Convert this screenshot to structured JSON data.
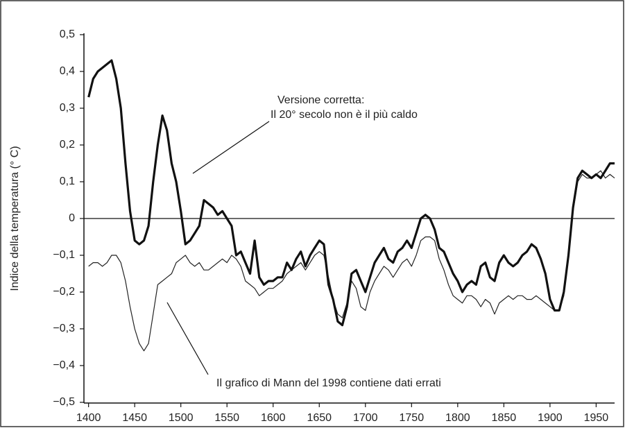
{
  "chart_data": {
    "type": "line",
    "y_label": "Indice della temperatura (° C)",
    "annotations": [
      "Versione corretta:",
      "Il 20° secolo non è il più caldo",
      "Il grafico di Mann del 1998 contiene dati errati"
    ],
    "x": [
      1400,
      1405,
      1410,
      1415,
      1420,
      1425,
      1430,
      1435,
      1440,
      1445,
      1450,
      1455,
      1460,
      1465,
      1470,
      1475,
      1480,
      1485,
      1490,
      1495,
      1500,
      1505,
      1510,
      1515,
      1520,
      1525,
      1530,
      1535,
      1540,
      1545,
      1550,
      1555,
      1560,
      1565,
      1570,
      1575,
      1580,
      1585,
      1590,
      1595,
      1600,
      1605,
      1610,
      1615,
      1620,
      1625,
      1630,
      1635,
      1640,
      1645,
      1650,
      1655,
      1660,
      1665,
      1670,
      1675,
      1680,
      1685,
      1690,
      1695,
      1700,
      1705,
      1710,
      1715,
      1720,
      1725,
      1730,
      1735,
      1740,
      1745,
      1750,
      1755,
      1760,
      1765,
      1770,
      1775,
      1780,
      1785,
      1790,
      1795,
      1800,
      1805,
      1810,
      1815,
      1820,
      1825,
      1830,
      1835,
      1840,
      1845,
      1850,
      1855,
      1860,
      1865,
      1870,
      1875,
      1880,
      1885,
      1890,
      1895,
      1900,
      1905,
      1910,
      1915,
      1920,
      1925,
      1930,
      1935,
      1940,
      1945,
      1950,
      1955,
      1960,
      1965,
      1970
    ],
    "series": [
      {
        "color": "#111111",
        "width": 3.2,
        "values": [
          0.33,
          0.38,
          0.4,
          0.41,
          0.42,
          0.43,
          0.38,
          0.3,
          0.15,
          0.02,
          -0.06,
          -0.07,
          -0.06,
          -0.02,
          0.1,
          0.2,
          0.28,
          0.24,
          0.15,
          0.1,
          0.02,
          -0.07,
          -0.06,
          -0.04,
          -0.02,
          0.05,
          0.04,
          0.03,
          0.01,
          0.02,
          0,
          -0.02,
          -0.1,
          -0.09,
          -0.12,
          -0.15,
          -0.06,
          -0.16,
          -0.18,
          -0.17,
          -0.17,
          -0.16,
          -0.16,
          -0.12,
          -0.14,
          -0.11,
          -0.09,
          -0.13,
          -0.1,
          -0.08,
          -0.06,
          -0.07,
          -0.18,
          -0.22,
          -0.28,
          -0.29,
          -0.24,
          -0.15,
          -0.14,
          -0.17,
          -0.2,
          -0.16,
          -0.12,
          -0.1,
          -0.08,
          -0.11,
          -0.12,
          -0.09,
          -0.08,
          -0.06,
          -0.08,
          -0.04,
          0,
          0.01,
          0,
          -0.03,
          -0.08,
          -0.09,
          -0.12,
          -0.15,
          -0.17,
          -0.2,
          -0.18,
          -0.17,
          -0.18,
          -0.13,
          -0.12,
          -0.16,
          -0.17,
          -0.12,
          -0.1,
          -0.12,
          -0.13,
          -0.12,
          -0.1,
          -0.09,
          -0.07,
          -0.08,
          -0.11,
          -0.15,
          -0.22,
          -0.25,
          -0.25,
          -0.2,
          -0.1,
          0.03,
          0.11,
          0.13,
          0.12,
          0.11,
          0.12,
          0.11,
          0.13,
          0.15,
          0.15
        ]
      },
      {
        "color": "#222222",
        "width": 1.2,
        "values": [
          -0.13,
          -0.12,
          -0.12,
          -0.13,
          -0.12,
          -0.1,
          -0.1,
          -0.12,
          -0.17,
          -0.24,
          -0.3,
          -0.34,
          -0.36,
          -0.34,
          -0.26,
          -0.18,
          -0.17,
          -0.16,
          -0.15,
          -0.12,
          -0.11,
          -0.1,
          -0.12,
          -0.13,
          -0.12,
          -0.14,
          -0.14,
          -0.13,
          -0.12,
          -0.11,
          -0.12,
          -0.1,
          -0.11,
          -0.13,
          -0.17,
          -0.18,
          -0.19,
          -0.21,
          -0.2,
          -0.19,
          -0.19,
          -0.18,
          -0.17,
          -0.15,
          -0.14,
          -0.13,
          -0.12,
          -0.14,
          -0.12,
          -0.1,
          -0.09,
          -0.1,
          -0.16,
          -0.22,
          -0.26,
          -0.27,
          -0.23,
          -0.17,
          -0.19,
          -0.24,
          -0.25,
          -0.2,
          -0.17,
          -0.15,
          -0.13,
          -0.14,
          -0.16,
          -0.14,
          -0.12,
          -0.11,
          -0.13,
          -0.1,
          -0.06,
          -0.05,
          -0.05,
          -0.06,
          -0.11,
          -0.14,
          -0.18,
          -0.21,
          -0.22,
          -0.23,
          -0.21,
          -0.21,
          -0.22,
          -0.24,
          -0.22,
          -0.23,
          -0.26,
          -0.23,
          -0.22,
          -0.21,
          -0.22,
          -0.21,
          -0.21,
          -0.22,
          -0.22,
          -0.21,
          -0.22,
          -0.23,
          -0.24,
          -0.25,
          -0.25,
          -0.21,
          -0.1,
          0.02,
          0.1,
          0.12,
          0.11,
          0.11,
          0.12,
          0.13,
          0.11,
          0.12,
          0.11
        ]
      }
    ],
    "xlim": [
      1395,
      1970
    ],
    "xticks": [
      1400,
      1450,
      1500,
      1550,
      1600,
      1650,
      1700,
      1750,
      1800,
      1850,
      1900,
      1950
    ],
    "ylim": [
      -0.5,
      0.5
    ],
    "yticks": [
      {
        "value": 0.5,
        "label": "0,5"
      },
      {
        "value": 0.4,
        "label": "0,4"
      },
      {
        "value": 0.3,
        "label": "0,3"
      },
      {
        "value": 0.2,
        "label": "0,2"
      },
      {
        "value": 0.1,
        "label": "0,1"
      },
      0,
      {
        "value": -0.1,
        "label": "−0,1"
      },
      {
        "value": -0.2,
        "label": "−0,2"
      },
      {
        "value": -0.3,
        "label": "−0,3"
      },
      {
        "value": -0.4,
        "label": "−0,4"
      },
      {
        "value": -0.5,
        "label": "−0,5"
      }
    ]
  }
}
